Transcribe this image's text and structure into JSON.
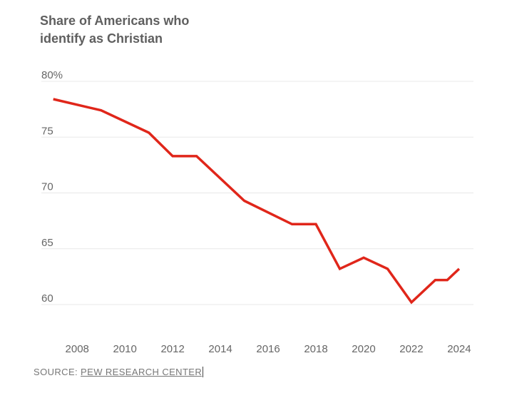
{
  "title_line1": "Share of Americans who",
  "title_line2": "identify as Christian",
  "source_prefix": "SOURCE:",
  "source_link": "PEW RESEARCH CENTER",
  "colors": {
    "line": "#e0261a",
    "grid": "#e8e8e8",
    "tick_text": "#666666",
    "title": "#5f5f5f"
  },
  "chart_data": {
    "type": "line",
    "title": "Share of Americans who identify as Christian",
    "xlabel": "",
    "ylabel": "",
    "x": [
      2007,
      2009,
      2011,
      2012,
      2013,
      2015,
      2017,
      2018,
      2019,
      2020,
      2021,
      2022,
      2023,
      2023.5,
      2024
    ],
    "series": [
      {
        "values": [
          78.4,
          77.4,
          75.4,
          73.3,
          73.3,
          69.3,
          67.2,
          67.2,
          63.2,
          64.2,
          63.2,
          60.2,
          62.2,
          62.2,
          63.2
        ]
      }
    ],
    "xlim": [
      2006.5,
      2024.6
    ],
    "ylim": [
      60,
      80
    ],
    "y_ticks": [
      80,
      75,
      70,
      65,
      60
    ],
    "y_tick_labels": [
      "80%",
      "75",
      "70",
      "65",
      "60"
    ],
    "x_ticks": [
      2008,
      2010,
      2012,
      2014,
      2016,
      2018,
      2020,
      2022,
      2024
    ],
    "x_tick_labels": [
      "2008",
      "2010",
      "2012",
      "2014",
      "2016",
      "2018",
      "2020",
      "2022",
      "2024"
    ],
    "grid": true
  }
}
